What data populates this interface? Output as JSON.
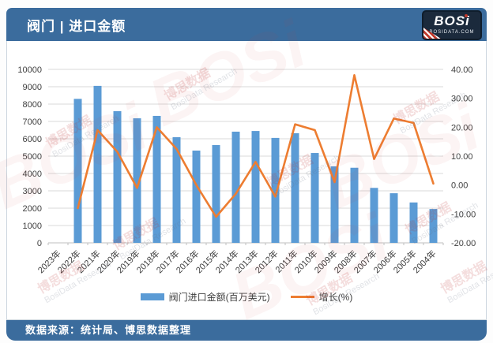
{
  "header": {
    "title": "阀门 | 进口金额",
    "logo": {
      "name": "BOSi",
      "site": "BOSIDATA.COM"
    }
  },
  "chart_data": {
    "type": "combo",
    "title": "阀门 | 进口金额",
    "categories": [
      "2023年",
      "2022年",
      "2021年",
      "2020年",
      "2019年",
      "2018年",
      "2017年",
      "2016年",
      "2015年",
      "2014年",
      "2013年",
      "2012年",
      "2011年",
      "2010年",
      "2009年",
      "2008年",
      "2007年",
      "2006年",
      "2005年",
      "2004年"
    ],
    "series": [
      {
        "name": "阀门进口金额(百万美元)",
        "type": "bar",
        "axis": "left",
        "color": "#5B9BD5",
        "values": [
          null,
          8300,
          9050,
          7590,
          7180,
          7320,
          6090,
          5320,
          5640,
          6410,
          6450,
          6050,
          6320,
          5180,
          4410,
          4330,
          3170,
          2860,
          2330,
          1950
        ]
      },
      {
        "name": "增长(%)",
        "type": "line",
        "axis": "right",
        "color": "#ED7D31",
        "values": [
          null,
          -8,
          19,
          11.5,
          -1,
          20,
          12.5,
          0,
          -11,
          -3,
          8,
          -4,
          21,
          19,
          1,
          38,
          9,
          23,
          21.5,
          0.5
        ]
      }
    ],
    "left_axis": {
      "min": 0,
      "max": 10000,
      "step": 1000
    },
    "right_axis": {
      "min": -20,
      "max": 40,
      "step": 10,
      "decimals": 2
    },
    "legend": [
      "阀门进口金额(百万美元)",
      "增长(%)"
    ],
    "legend_position": "bottom",
    "grid": true,
    "colors": {
      "bar": "#5B9BD5",
      "line": "#ED7D31",
      "grid": "#D9D9D9",
      "axis": "#BFBFBF"
    }
  },
  "footer": {
    "source_text": "数据来源：统计局、博思数据整理"
  },
  "watermark": {
    "logo_text": "BOSi",
    "cn_text": "博思数据",
    "en_text": "BosiData Research"
  },
  "colors": {
    "accent_blue": "#3B6C9D",
    "logo_bg": "#1B2A3C",
    "logo_red": "#C0392B"
  }
}
